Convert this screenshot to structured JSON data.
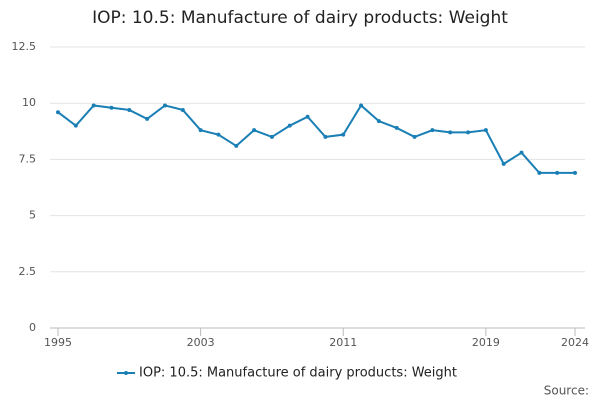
{
  "chart_data": {
    "type": "line",
    "title": "IOP: 10.5: Manufacture of dairy products: Weight",
    "x": [
      1995,
      1996,
      1997,
      1998,
      1999,
      2000,
      2001,
      2002,
      2003,
      2004,
      2005,
      2006,
      2007,
      2008,
      2009,
      2010,
      2011,
      2012,
      2013,
      2014,
      2015,
      2016,
      2017,
      2018,
      2019,
      2020,
      2021,
      2022,
      2023,
      2024
    ],
    "series": [
      {
        "name": "IOP: 10.5: Manufacture of dairy products: Weight",
        "color": "#1a7fb5",
        "values": [
          9.6,
          9.0,
          9.9,
          9.8,
          9.7,
          9.3,
          9.9,
          9.7,
          8.8,
          8.6,
          8.1,
          8.8,
          8.5,
          9.0,
          9.4,
          8.5,
          8.6,
          9.9,
          9.2,
          8.9,
          8.5,
          8.8,
          8.7,
          8.7,
          8.8,
          7.3,
          7.8,
          6.9,
          6.9,
          6.9
        ]
      }
    ],
    "xlim": [
      1995,
      2024
    ],
    "xticks": [
      1995,
      2003,
      2011,
      2019,
      2024
    ],
    "ylim": [
      0,
      12.5
    ],
    "yticks": [
      0,
      2.5,
      5,
      7.5,
      10,
      12.5
    ],
    "grid": true,
    "source": "Source:"
  }
}
